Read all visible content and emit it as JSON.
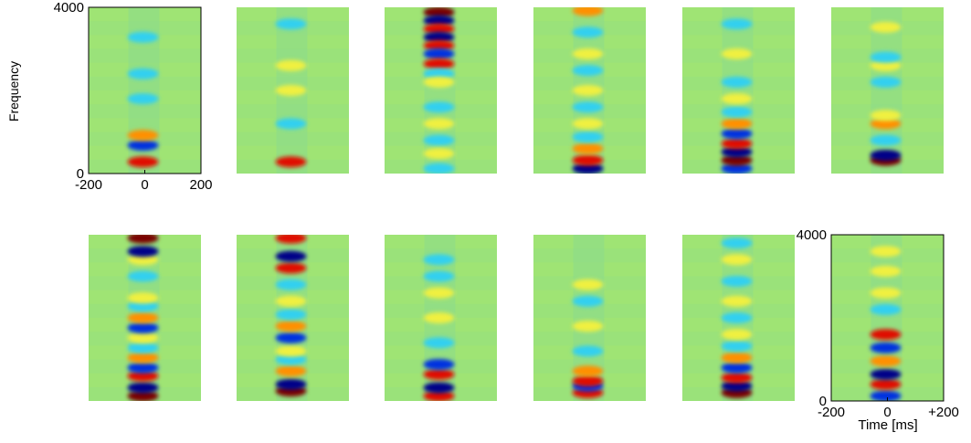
{
  "figure": {
    "y_axis_label": "Frequency",
    "x_axis_label": "Time [ms]",
    "first_panel": {
      "xlim": [
        -200,
        200
      ],
      "xticks": [
        -200,
        0,
        200
      ],
      "ylim": [
        0,
        4000
      ],
      "yticks": [
        0,
        4000
      ]
    },
    "last_panel": {
      "xlim": [
        -200,
        200
      ],
      "xticks": [
        -200,
        0,
        {
          "value": 200,
          "label": "+200"
        }
      ],
      "ylim": [
        0,
        4000
      ],
      "yticks": [
        0,
        4000
      ]
    }
  }
}
